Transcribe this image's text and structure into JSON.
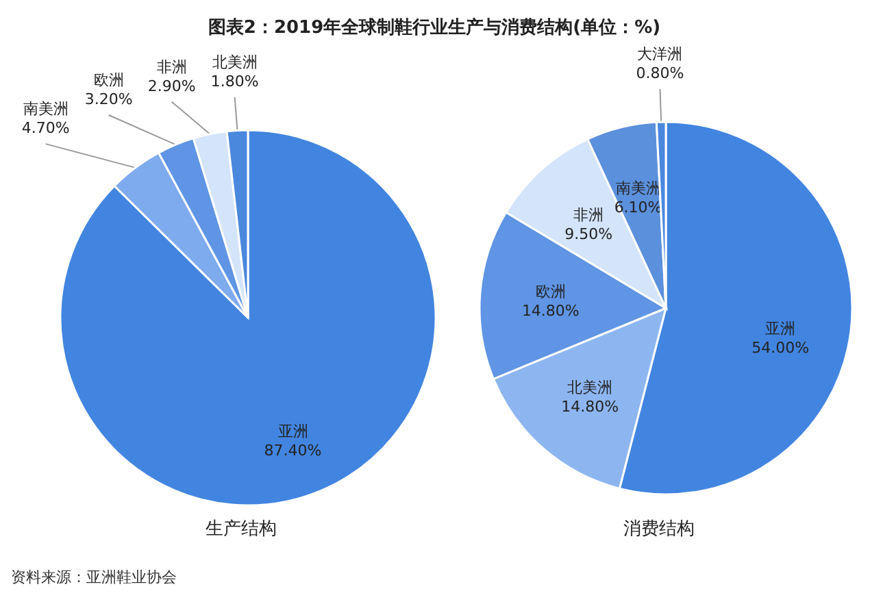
{
  "chart_data": [
    {
      "type": "pie",
      "title": "图表2：2019年全球制鞋行业生产与消费结构(单位：%)",
      "xlabel": "生产结构",
      "categories": [
        "亚洲",
        "南美洲",
        "欧洲",
        "非洲",
        "北美洲"
      ],
      "values": [
        87.4,
        4.7,
        3.2,
        2.9,
        1.8
      ],
      "value_labels": [
        "87.40%",
        "4.70%",
        "3.20%",
        "2.90%",
        "1.80%"
      ],
      "colors": [
        "#4285e0",
        "#7eaaee",
        "#5f95e4",
        "#d4e4fa",
        "#4a88de"
      ],
      "legend": false,
      "annotations": [
        "资料来源：亚洲鞋业协会"
      ]
    },
    {
      "type": "pie",
      "xlabel": "消费结构",
      "categories": [
        "亚洲",
        "北美洲",
        "欧洲",
        "非洲",
        "南美洲",
        "大洋洲"
      ],
      "values": [
        54.0,
        14.8,
        14.8,
        9.5,
        6.1,
        0.8
      ],
      "value_labels": [
        "54.00%",
        "14.80%",
        "14.80%",
        "9.50%",
        "6.10%",
        "0.80%"
      ],
      "colors": [
        "#4285e0",
        "#8db6f0",
        "#5f95e4",
        "#d4e4fa",
        "#5b90dc",
        "#4a88de"
      ],
      "legend": false
    }
  ]
}
